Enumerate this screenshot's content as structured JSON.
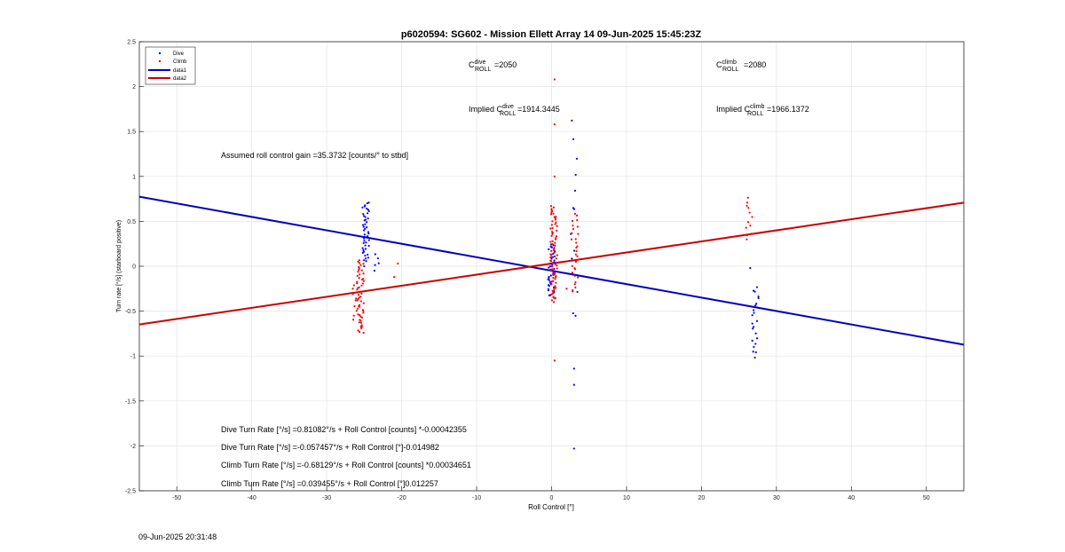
{
  "timestamp": "09-Jun-2025 20:31:48",
  "chart_data": {
    "type": "scatter",
    "title": "p6020594: SG602 - Mission Ellett Array 14 09-Jun-2025 15:45:23Z",
    "xlabel": "Roll Control [°]",
    "ylabel": "Turn rate [°/s] (starboard positive)",
    "xlim": [
      -55,
      55
    ],
    "ylim": [
      -2.5,
      2.5
    ],
    "xticks": [
      -50,
      -40,
      -30,
      -20,
      -10,
      0,
      10,
      20,
      30,
      40,
      50
    ],
    "yticks": [
      -2.5,
      -2,
      -1.5,
      -1,
      -0.5,
      0,
      0.5,
      1,
      1.5,
      2,
      2.5
    ],
    "grid": true,
    "legend_position": "top-left",
    "series": [
      {
        "name": "Dive",
        "kind": "points",
        "color": "#0000ff",
        "clusters": [
          {
            "x": -24.8,
            "y_min": 0.05,
            "y_max": 0.72,
            "count": 45
          },
          {
            "x": -23.5,
            "y_min": -0.05,
            "y_max": 0.15,
            "count": 5
          },
          {
            "x": 0.0,
            "y_min": -0.35,
            "y_max": 0.25,
            "count": 45
          },
          {
            "x": 3.0,
            "y_min": -0.7,
            "y_max": 1.65,
            "count": 14
          },
          {
            "x": 27.2,
            "y_min": -1.03,
            "y_max": -0.2,
            "count": 22
          }
        ],
        "extra_points": [
          [
            3.0,
            -2.03
          ],
          [
            3.0,
            -1.32
          ],
          [
            3.0,
            -1.14
          ],
          [
            -25.0,
            0.0
          ],
          [
            26.5,
            -0.02
          ]
        ]
      },
      {
        "name": "Climb",
        "kind": "points",
        "color": "#ff0000",
        "clusters": [
          {
            "x": -25.5,
            "y_min": -0.75,
            "y_max": 0.08,
            "count": 55
          },
          {
            "x": -26.3,
            "y_min": -0.6,
            "y_max": -0.15,
            "count": 10
          },
          {
            "x": 0.3,
            "y_min": -0.4,
            "y_max": 0.68,
            "count": 75
          },
          {
            "x": 3.1,
            "y_min": -0.3,
            "y_max": 0.6,
            "count": 30
          },
          {
            "x": 26.4,
            "y_min": 0.27,
            "y_max": 0.79,
            "count": 12
          }
        ],
        "extra_points": [
          [
            0.4,
            2.08
          ],
          [
            0.4,
            1.58
          ],
          [
            0.4,
            1.0
          ],
          [
            0.4,
            -1.05
          ],
          [
            -20.5,
            0.03
          ],
          [
            -21.0,
            -0.12
          ],
          [
            2.0,
            -0.25
          ]
        ]
      },
      {
        "name": "data1",
        "kind": "line",
        "color": "#0000c0",
        "x": [
          -55,
          55
        ],
        "y": [
          0.774,
          -0.873
        ]
      },
      {
        "name": "data2",
        "kind": "line",
        "color": "#cc0000",
        "x": [
          -55,
          55
        ],
        "y": [
          -0.648,
          0.708
        ]
      }
    ],
    "annotations": {
      "c_dive": {
        "base": "C",
        "sup": "dive",
        "sub": "ROLL",
        "value": "=2050"
      },
      "c_climb": {
        "base": "C",
        "sup": "climb",
        "sub": "ROLL",
        "value": "=2080"
      },
      "implied_dive": {
        "prefix": "Implied C",
        "sup": "dive",
        "sub": "ROLL",
        "value": "=1914.3445"
      },
      "implied_climb": {
        "prefix": "Implied C",
        "sup": "climb",
        "sub": "ROLL",
        "value": "=1966.1372"
      },
      "gain": "Assumed roll control gain =35.3732 [counts/° to stbd]",
      "eq1": "Dive Turn Rate [°/s] =0.81082°/s + Roll Control [counts] *-0.00042355",
      "eq2": "Dive Turn Rate [°/s] =-0.057457°/s + Roll Control [°]-0.014982",
      "eq3": "Climb Turn Rate [°/s] =-0.68129°/s + Roll Control [counts] *0.00034651",
      "eq4": "Climb Turn Rate [°/s] =0.039455°/s + Roll Control [°]0.012257"
    }
  }
}
